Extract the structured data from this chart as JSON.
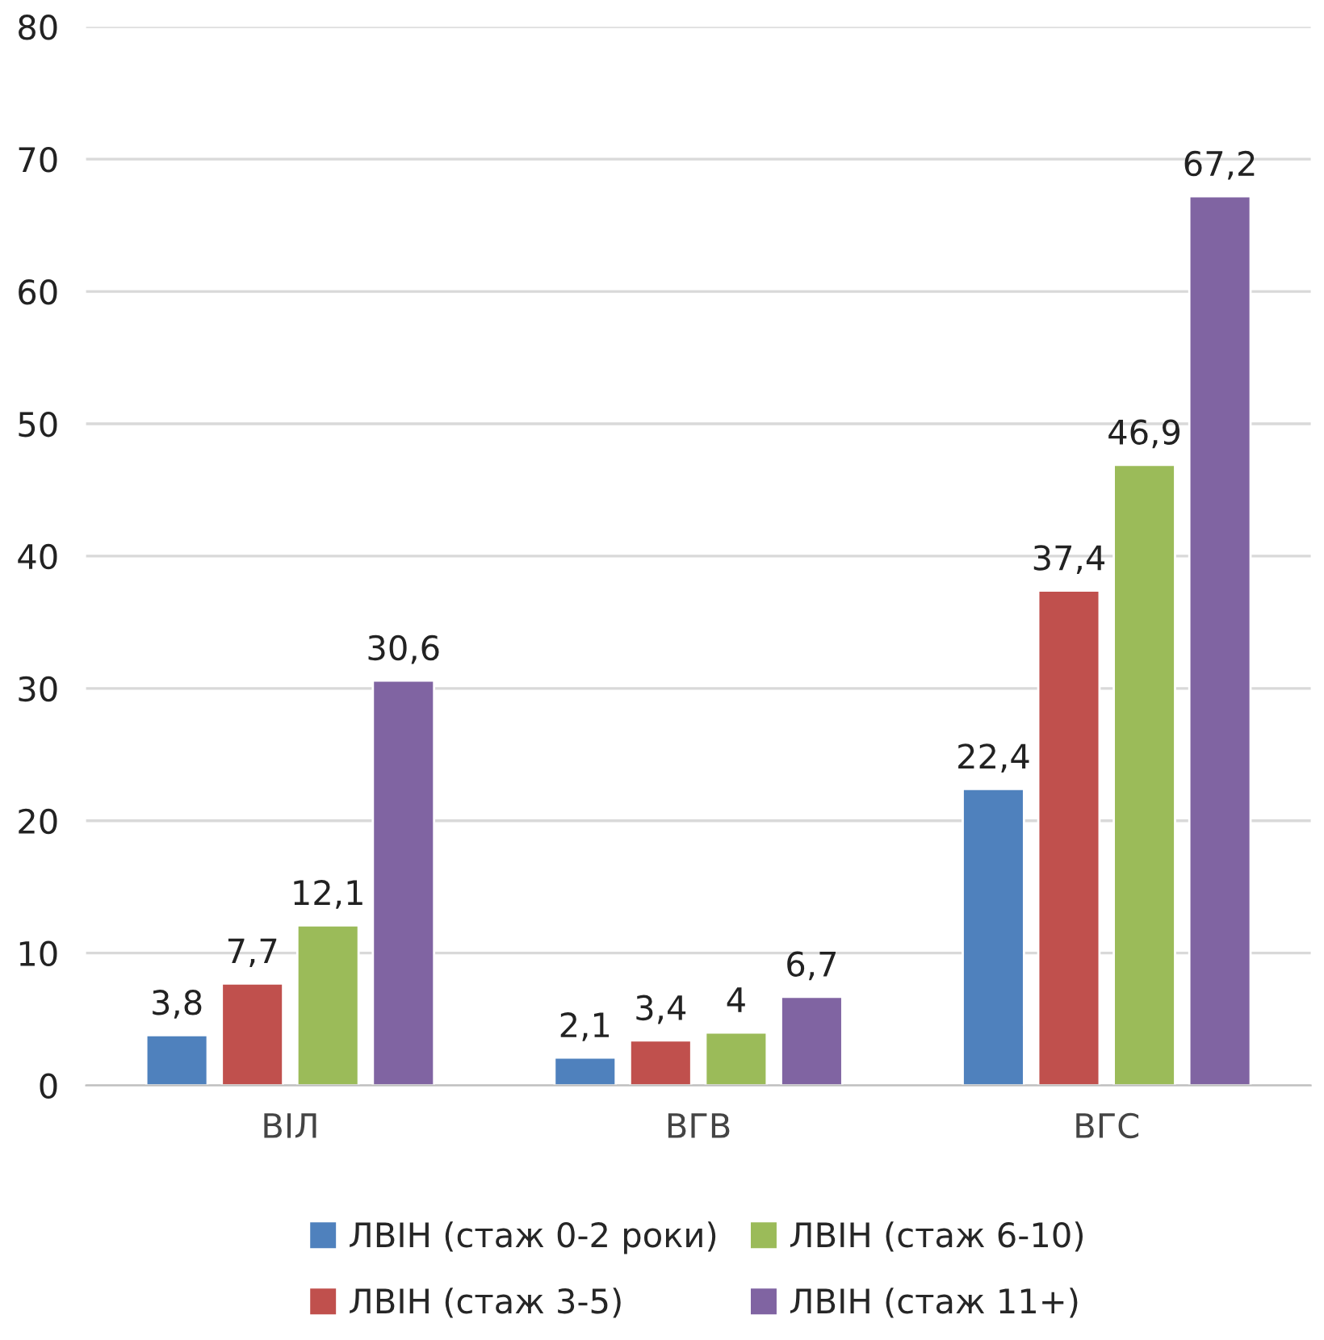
{
  "chart_data": {
    "type": "bar",
    "categories": [
      "ВІЛ",
      "ВГВ",
      "ВГС"
    ],
    "series": [
      {
        "name": "ЛВІН (стаж 0-2 роки)",
        "color": "#4f81bd",
        "values": [
          3.8,
          2.1,
          22.4
        ],
        "value_labels": [
          "3,8",
          "2,1",
          "22,4"
        ]
      },
      {
        "name": "ЛВІН (стаж 3-5)",
        "color": "#c0504d",
        "values": [
          7.7,
          3.4,
          37.4
        ],
        "value_labels": [
          "7,7",
          "3,4",
          "37,4"
        ]
      },
      {
        "name": "ЛВІН (стаж 6-10)",
        "color": "#9bbb59",
        "values": [
          12.1,
          4,
          46.9
        ],
        "value_labels": [
          "12,1",
          "4",
          "46,9"
        ]
      },
      {
        "name": "ЛВІН (стаж 11+)",
        "color": "#8064a2",
        "values": [
          30.6,
          6.7,
          67.2
        ],
        "value_labels": [
          "30,6",
          "6,7",
          "67,2"
        ]
      }
    ],
    "ylim": [
      0,
      80
    ],
    "yticks": [
      0,
      10,
      20,
      30,
      40,
      50,
      60,
      70,
      80
    ],
    "grid": "y",
    "legend": "bottom"
  }
}
